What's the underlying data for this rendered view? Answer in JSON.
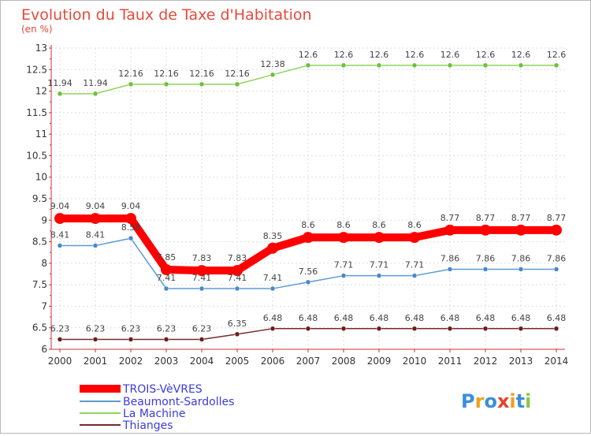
{
  "chart_data": {
    "type": "line",
    "title": "Evolution du Taux de Taxe d'Habitation",
    "subtitle": "(en %)",
    "xlabel": "",
    "ylabel": "",
    "ylim": [
      6,
      13
    ],
    "yticks": [
      "6",
      "6.5",
      "7",
      "7.5",
      "8",
      "8.5",
      "9",
      "9.5",
      "10",
      "10.5",
      "11",
      "11.5",
      "12",
      "12.5",
      "13"
    ],
    "ytick_values": [
      6,
      6.5,
      7,
      7.5,
      8,
      8.5,
      9,
      9.5,
      10,
      10.5,
      11,
      11.5,
      12,
      12.5,
      13
    ],
    "categories": [
      "2000",
      "2001",
      "2002",
      "2003",
      "2004",
      "2005",
      "2006",
      "2007",
      "2008",
      "2009",
      "2010",
      "2011",
      "2012",
      "2013",
      "2014"
    ],
    "grid": true,
    "legend_position": "bottom-left",
    "series": [
      {
        "name": "TROIS-VèVRES",
        "color": "#ff0000",
        "values": [
          9.04,
          9.04,
          9.04,
          7.85,
          7.83,
          7.83,
          8.35,
          8.6,
          8.6,
          8.6,
          8.6,
          8.77,
          8.77,
          8.77,
          8.77
        ],
        "labels": [
          "9.04",
          "9.04",
          "9.04",
          "7.85",
          "7.83",
          "7.83",
          "8.35",
          "8.6",
          "8.6",
          "8.6",
          "8.6",
          "8.77",
          "8.77",
          "8.77",
          "8.77"
        ]
      },
      {
        "name": "Beaumont-Sardolles",
        "color": "#5b9bd5",
        "values": [
          8.41,
          8.41,
          8.58,
          7.41,
          7.41,
          7.41,
          7.41,
          7.56,
          7.71,
          7.71,
          7.71,
          7.86,
          7.86,
          7.86,
          7.86
        ],
        "labels": [
          "8.41",
          "8.41",
          "8.58",
          "7.41",
          "7.41",
          "7.41",
          "7.41",
          "7.56",
          "7.71",
          "7.71",
          "7.71",
          "7.86",
          "7.86",
          "7.86",
          "7.86"
        ]
      },
      {
        "name": "La Machine",
        "color": "#8fd35a",
        "values": [
          11.94,
          11.94,
          12.16,
          12.16,
          12.16,
          12.16,
          12.38,
          12.6,
          12.6,
          12.6,
          12.6,
          12.6,
          12.6,
          12.6,
          12.6
        ],
        "labels": [
          "11.94",
          "11.94",
          "12.16",
          "12.16",
          "12.16",
          "12.16",
          "12.38",
          "12.6",
          "12.6",
          "12.6",
          "12.6",
          "12.6",
          "12.6",
          "12.6",
          "12.6"
        ]
      },
      {
        "name": "Thianges",
        "color": "#7a2a2a",
        "values": [
          6.23,
          6.23,
          6.23,
          6.23,
          6.23,
          6.35,
          6.48,
          6.48,
          6.48,
          6.48,
          6.48,
          6.48,
          6.48,
          6.48,
          6.48
        ],
        "labels": [
          "6.23",
          "6.23",
          "6.23",
          "6.23",
          "6.23",
          "6.35",
          "6.48",
          "6.48",
          "6.48",
          "6.48",
          "6.48",
          "6.48",
          "6.48",
          "6.48",
          "6.48"
        ]
      }
    ]
  },
  "logo": {
    "text": "Proxiti",
    "letters": [
      "P",
      "r",
      "o",
      "x",
      "i",
      "t",
      "i"
    ],
    "colors": [
      "#3a8fd9",
      "#f0a020",
      "#3a8fd9",
      "#e8402a",
      "#f0a020",
      "#3a8fd9",
      "#8dc63f"
    ]
  }
}
